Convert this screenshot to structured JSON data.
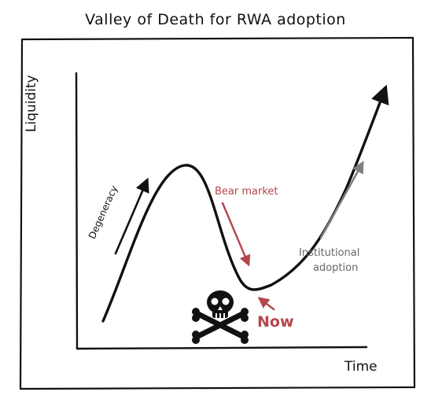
{
  "title": "Valley of Death for RWA adoption",
  "axes": {
    "y_label": "Liquidity",
    "x_label": "Time"
  },
  "annotations": {
    "degeneracy": "Degeneracy",
    "bear_market": "Bear market",
    "institutional_line1": "Institutional",
    "institutional_line2": "adoption",
    "now": "Now"
  },
  "colors": {
    "ink": "#111111",
    "bear": "#b4464b",
    "institutional": "#808080",
    "skull": "#111111"
  },
  "icons": {
    "skull": "skull-and-crossbones-icon"
  }
}
